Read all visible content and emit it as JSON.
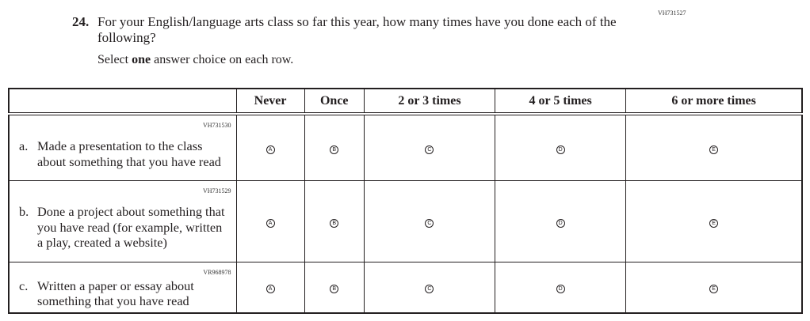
{
  "question": {
    "code": "VH731527",
    "number": "24.",
    "text": "For your English/language arts class so far this year, how many times have you done each of the following?",
    "instruction_pre": "Select ",
    "instruction_bold": "one",
    "instruction_post": " answer choice on each row."
  },
  "columns": [
    "Never",
    "Once",
    "2 or 3 times",
    "4 or 5 times",
    "6 or more times"
  ],
  "choices": [
    "A",
    "B",
    "C",
    "D",
    "E"
  ],
  "rows": [
    {
      "code": "VH731530",
      "label": "a.",
      "text": "Made a presentation to the class about something that you have read"
    },
    {
      "code": "VH731529",
      "label": "b.",
      "text": "Done a project about something that you have read (for example, written a play, created a website)"
    },
    {
      "code": "VR968978",
      "label": "c.",
      "text": "Written a paper or essay about something that you have read"
    }
  ]
}
